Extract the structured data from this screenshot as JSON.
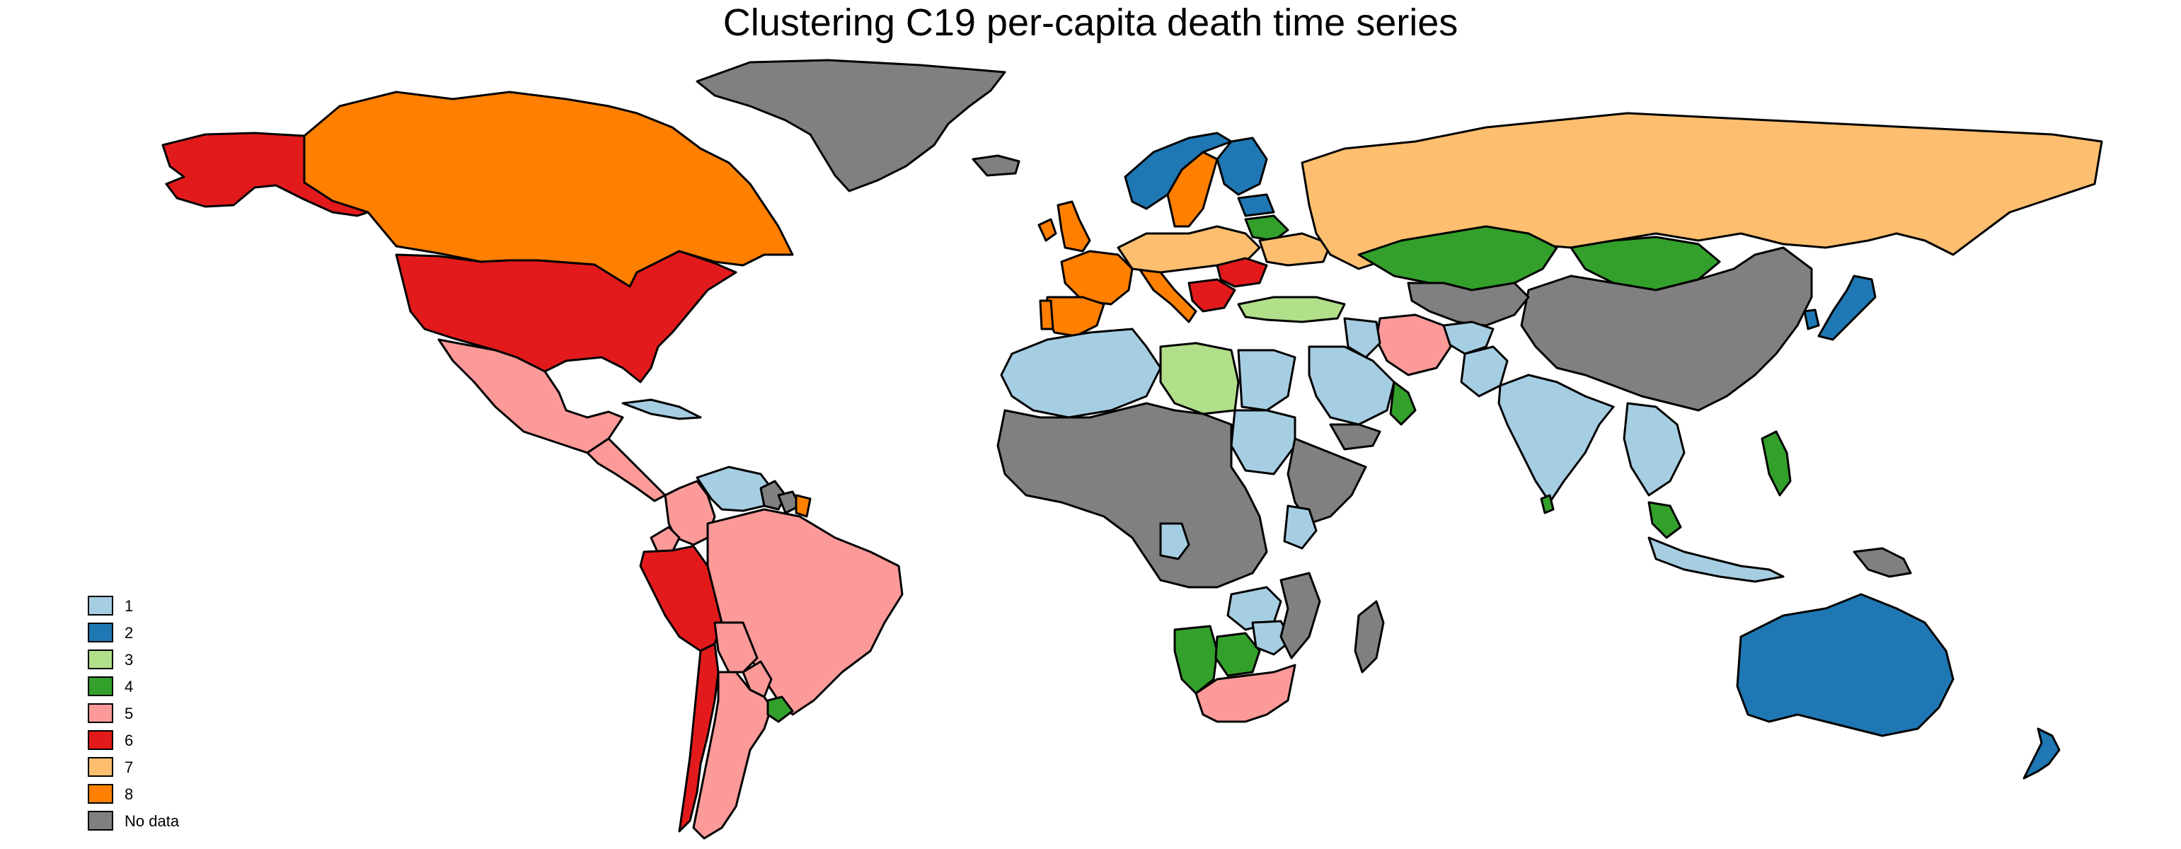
{
  "map": {
    "title": "Clustering C19 per-capita death time series"
  },
  "legend": {
    "items": [
      {
        "label": "1",
        "color": "#a6cee3"
      },
      {
        "label": "2",
        "color": "#1f78b4"
      },
      {
        "label": "3",
        "color": "#b2df8a"
      },
      {
        "label": "4",
        "color": "#33a02c"
      },
      {
        "label": "5",
        "color": "#fb9a99"
      },
      {
        "label": "6",
        "color": "#e31a1c"
      },
      {
        "label": "7",
        "color": "#fdbf6f"
      },
      {
        "label": "8",
        "color": "#ff7f00"
      },
      {
        "label": "No data",
        "color": "#808080"
      }
    ]
  },
  "regions": [
    {
      "name": "Greenland",
      "cluster": "No data"
    },
    {
      "name": "Canada",
      "cluster": "8"
    },
    {
      "name": "Alaska",
      "cluster": "6"
    },
    {
      "name": "United States",
      "cluster": "6"
    },
    {
      "name": "Mexico",
      "cluster": "5"
    },
    {
      "name": "Central America",
      "cluster": "5"
    },
    {
      "name": "Cuba",
      "cluster": "1"
    },
    {
      "name": "Colombia",
      "cluster": "5"
    },
    {
      "name": "Venezuela",
      "cluster": "1"
    },
    {
      "name": "Guyana",
      "cluster": "No data"
    },
    {
      "name": "Suriname",
      "cluster": "No data"
    },
    {
      "name": "French Guiana",
      "cluster": "8"
    },
    {
      "name": "Ecuador",
      "cluster": "5"
    },
    {
      "name": "Peru",
      "cluster": "6"
    },
    {
      "name": "Brazil",
      "cluster": "5"
    },
    {
      "name": "Bolivia",
      "cluster": "5"
    },
    {
      "name": "Paraguay",
      "cluster": "5"
    },
    {
      "name": "Chile",
      "cluster": "6"
    },
    {
      "name": "Argentina",
      "cluster": "5"
    },
    {
      "name": "Uruguay",
      "cluster": "4"
    },
    {
      "name": "Iceland",
      "cluster": "No data"
    },
    {
      "name": "Ireland",
      "cluster": "8"
    },
    {
      "name": "United Kingdom",
      "cluster": "8"
    },
    {
      "name": "Norway",
      "cluster": "2"
    },
    {
      "name": "Sweden",
      "cluster": "8"
    },
    {
      "name": "Finland",
      "cluster": "2"
    },
    {
      "name": "France",
      "cluster": "8"
    },
    {
      "name": "Spain",
      "cluster": "8"
    },
    {
      "name": "Portugal",
      "cluster": "8"
    },
    {
      "name": "Italy",
      "cluster": "8"
    },
    {
      "name": "Central Europe",
      "cluster": "7"
    },
    {
      "name": "Belarus",
      "cluster": "4"
    },
    {
      "name": "Baltic",
      "cluster": "2"
    },
    {
      "name": "Romania",
      "cluster": "6"
    },
    {
      "name": "Balkans",
      "cluster": "6"
    },
    {
      "name": "Ukraine",
      "cluster": "7"
    },
    {
      "name": "Turkey",
      "cluster": "3"
    },
    {
      "name": "Russia",
      "cluster": "7"
    },
    {
      "name": "Kazakhstan",
      "cluster": "4"
    },
    {
      "name": "Mongolia",
      "cluster": "4"
    },
    {
      "name": "China",
      "cluster": "No data"
    },
    {
      "name": "Central Asia",
      "cluster": "No data"
    },
    {
      "name": "Afghanistan",
      "cluster": "1"
    },
    {
      "name": "Iran",
      "cluster": "5"
    },
    {
      "name": "Iraq",
      "cluster": "1"
    },
    {
      "name": "Saudi Arabia",
      "cluster": "1"
    },
    {
      "name": "Oman",
      "cluster": "4"
    },
    {
      "name": "Yemen",
      "cluster": "No data"
    },
    {
      "name": "Pakistan",
      "cluster": "1"
    },
    {
      "name": "India",
      "cluster": "1"
    },
    {
      "name": "Sri Lanka",
      "cluster": "4"
    },
    {
      "name": "Southeast Asia",
      "cluster": "1"
    },
    {
      "name": "Malaysia",
      "cluster": "4"
    },
    {
      "name": "Indonesia",
      "cluster": "1"
    },
    {
      "name": "Philippines",
      "cluster": "4"
    },
    {
      "name": "Japan",
      "cluster": "2"
    },
    {
      "name": "South Korea",
      "cluster": "2"
    },
    {
      "name": "Papua New Guinea",
      "cluster": "No data"
    },
    {
      "name": "Australia",
      "cluster": "2"
    },
    {
      "name": "New Zealand",
      "cluster": "2"
    },
    {
      "name": "North Africa",
      "cluster": "1"
    },
    {
      "name": "Libya",
      "cluster": "3"
    },
    {
      "name": "Egypt",
      "cluster": "1"
    },
    {
      "name": "Sudan",
      "cluster": "1"
    },
    {
      "name": "Sahel and Central Africa",
      "cluster": "No data"
    },
    {
      "name": "Horn of Africa",
      "cluster": "No data"
    },
    {
      "name": "Kenya",
      "cluster": "1"
    },
    {
      "name": "Angola",
      "cluster": "1"
    },
    {
      "name": "Zambia",
      "cluster": "1"
    },
    {
      "name": "Namibia",
      "cluster": "4"
    },
    {
      "name": "Botswana",
      "cluster": "4"
    },
    {
      "name": "Zimbabwe",
      "cluster": "1"
    },
    {
      "name": "Mozambique",
      "cluster": "No data"
    },
    {
      "name": "South Africa",
      "cluster": "5"
    },
    {
      "name": "Madagascar",
      "cluster": "No data"
    }
  ]
}
